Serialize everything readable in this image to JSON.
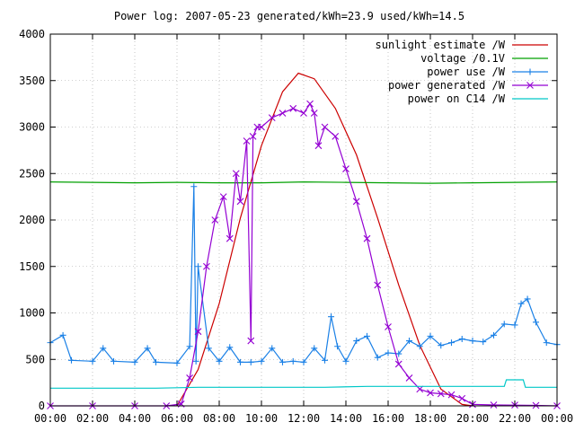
{
  "chart_data": {
    "type": "line",
    "title": "Power log: 2007-05-23 generated/kWh=23.9 used/kWh=14.5",
    "xlabel": "",
    "ylabel": "",
    "xlim_hours": [
      0,
      24
    ],
    "ylim": [
      0,
      4000
    ],
    "grid": true,
    "legend_position": "top-right",
    "x_ticks": [
      "00:00",
      "02:00",
      "04:00",
      "06:00",
      "08:00",
      "10:00",
      "12:00",
      "14:00",
      "16:00",
      "18:00",
      "20:00",
      "22:00",
      "00:00"
    ],
    "y_ticks": [
      "0",
      "500",
      "1000",
      "1500",
      "2000",
      "2500",
      "3000",
      "3500",
      "4000"
    ],
    "series": [
      {
        "name": "sunlight estimate /W",
        "color": "#cc0000",
        "marker": "none",
        "x": [
          6.0,
          7,
          8,
          9,
          10,
          11,
          11.75,
          12.5,
          13.5,
          14.5,
          15.5,
          16.5,
          17.5,
          18.5,
          19.5,
          20.0
        ],
        "y": [
          0,
          390,
          1100,
          2020,
          2800,
          3380,
          3580,
          3520,
          3200,
          2700,
          2020,
          1300,
          650,
          180,
          15,
          0
        ]
      },
      {
        "name": "voltage /0.1V",
        "color": "#00a000",
        "marker": "none",
        "x": [
          0,
          2,
          4,
          6,
          8,
          10,
          12,
          14,
          16,
          18,
          20,
          22,
          24
        ],
        "y": [
          2410,
          2405,
          2400,
          2405,
          2400,
          2400,
          2410,
          2405,
          2400,
          2395,
          2400,
          2405,
          2410
        ]
      },
      {
        "name": "power use /W",
        "color": "#1a80e6",
        "marker": "plus",
        "x": [
          0,
          0.6,
          1.0,
          2.0,
          2.5,
          3.0,
          4.0,
          4.6,
          5.0,
          6.0,
          6.6,
          6.8,
          6.9,
          7.0,
          7.5,
          8.0,
          8.5,
          9.0,
          9.5,
          10.0,
          10.5,
          11.0,
          11.5,
          12.0,
          12.5,
          13.0,
          13.3,
          13.6,
          14.0,
          14.5,
          15.0,
          15.5,
          16.0,
          16.5,
          17.0,
          17.5,
          18.0,
          18.5,
          19.0,
          19.5,
          20.0,
          20.5,
          21.0,
          21.5,
          22.0,
          22.3,
          22.6,
          23.0,
          23.5,
          24.0
        ],
        "y": [
          680,
          760,
          490,
          480,
          620,
          480,
          470,
          620,
          470,
          460,
          640,
          2360,
          480,
          1500,
          620,
          480,
          630,
          470,
          470,
          480,
          620,
          470,
          480,
          470,
          620,
          490,
          960,
          640,
          480,
          700,
          750,
          520,
          570,
          560,
          700,
          640,
          750,
          650,
          680,
          720,
          700,
          690,
          760,
          880,
          870,
          1100,
          1150,
          900,
          680,
          660
        ]
      },
      {
        "name": "power generated /W",
        "color": "#9400d3",
        "marker": "cross",
        "x": [
          0,
          2,
          4,
          5.5,
          6.2,
          6.6,
          7.0,
          7.4,
          7.8,
          8.2,
          8.5,
          8.8,
          9.0,
          9.3,
          9.5,
          9.6,
          9.8,
          10.0,
          10.5,
          11.0,
          11.5,
          12.0,
          12.3,
          12.5,
          12.7,
          13.0,
          13.5,
          14.0,
          14.5,
          15.0,
          15.5,
          16.0,
          16.5,
          17.0,
          17.5,
          18.0,
          18.5,
          19.0,
          19.5,
          20.0,
          21.0,
          22.0,
          23.0,
          24.0
        ],
        "y": [
          0,
          0,
          0,
          0,
          20,
          300,
          800,
          1500,
          2000,
          2250,
          1800,
          2500,
          2200,
          2850,
          700,
          2900,
          3000,
          3000,
          3100,
          3150,
          3200,
          3150,
          3250,
          3150,
          2800,
          3000,
          2900,
          2550,
          2200,
          1800,
          1300,
          850,
          450,
          300,
          180,
          140,
          130,
          120,
          80,
          15,
          10,
          8,
          5,
          0
        ]
      },
      {
        "name": "power on C14 /W",
        "color": "#00c8c8",
        "marker": "none",
        "x": [
          0,
          5,
          7,
          9,
          11,
          13,
          15,
          17,
          19,
          21,
          21.5,
          21.6,
          22.4,
          22.5,
          24.0
        ],
        "y": [
          190,
          190,
          200,
          200,
          200,
          200,
          210,
          210,
          210,
          210,
          210,
          280,
          280,
          200,
          200
        ]
      }
    ]
  }
}
